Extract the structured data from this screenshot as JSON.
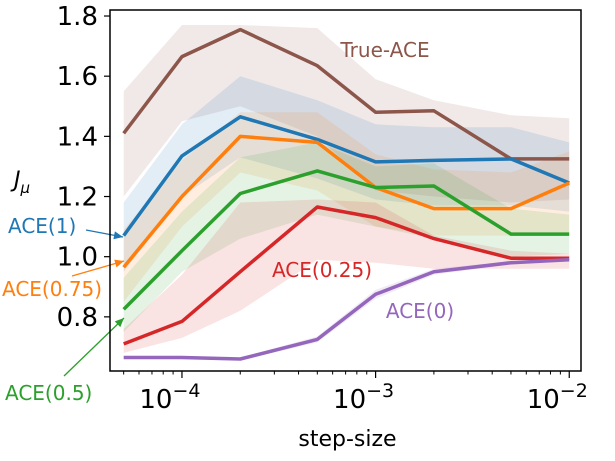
{
  "chart_data": {
    "type": "line",
    "title": "",
    "xlabel": "step-size",
    "ylabel": "J",
    "ylabel_sub": "μ",
    "x_scale": "log",
    "x": [
      5e-05,
      0.0001,
      0.0002,
      0.0005,
      0.001,
      0.002,
      0.005,
      0.01
    ],
    "xlim": [
      4.25e-05,
      0.0115
    ],
    "ylim": [
      0.62,
      1.82
    ],
    "x_ticks": [
      {
        "value": 0.0001,
        "base": "10",
        "exp": "−4"
      },
      {
        "value": 0.001,
        "base": "10",
        "exp": "−3"
      },
      {
        "value": 0.01,
        "base": "10",
        "exp": "−2"
      }
    ],
    "y_ticks": [
      {
        "value": 0.8,
        "label": "0.8"
      },
      {
        "value": 1.0,
        "label": "1.0"
      },
      {
        "value": 1.2,
        "label": "1.2"
      },
      {
        "value": 1.4,
        "label": "1.4"
      },
      {
        "value": 1.6,
        "label": "1.6"
      },
      {
        "value": 1.8,
        "label": "1.8"
      }
    ],
    "series": [
      {
        "name": "True-ACE",
        "color": "#8c564b",
        "values": [
          1.41,
          1.665,
          1.755,
          1.635,
          1.48,
          1.485,
          1.325,
          1.325
        ],
        "lower": [
          1.2,
          1.45,
          1.5,
          1.4,
          1.22,
          1.2,
          1.18,
          1.19
        ],
        "upper": [
          1.55,
          1.77,
          1.77,
          1.76,
          1.59,
          1.52,
          1.47,
          1.46
        ]
      },
      {
        "name": "ACE(1)",
        "color": "#1f77b4",
        "values": [
          1.07,
          1.335,
          1.465,
          1.39,
          1.315,
          1.32,
          1.325,
          1.245
        ],
        "lower": [
          0.95,
          1.2,
          1.33,
          1.26,
          1.19,
          1.17,
          1.17,
          1.15
        ],
        "upper": [
          1.18,
          1.44,
          1.6,
          1.52,
          1.44,
          1.43,
          1.43,
          1.38
        ]
      },
      {
        "name": "ACE(0.75)",
        "color": "#ff7f0e",
        "values": [
          0.965,
          1.2,
          1.4,
          1.38,
          1.23,
          1.16,
          1.16,
          1.245
        ],
        "lower": [
          0.85,
          1.1,
          1.28,
          1.22,
          1.1,
          1.07,
          1.07,
          1.07
        ],
        "upper": [
          1.09,
          1.32,
          1.48,
          1.48,
          1.34,
          1.29,
          1.28,
          1.35
        ]
      },
      {
        "name": "ACE(0.5)",
        "color": "#2ca02c",
        "values": [
          0.825,
          1.02,
          1.21,
          1.285,
          1.23,
          1.235,
          1.075,
          1.075
        ],
        "lower": [
          0.75,
          0.95,
          1.06,
          1.14,
          1.1,
          1.06,
          1.0,
          1.01
        ],
        "upper": [
          0.93,
          1.15,
          1.33,
          1.38,
          1.3,
          1.31,
          1.16,
          1.14
        ]
      },
      {
        "name": "ACE(0.25)",
        "color": "#d62728",
        "values": [
          0.71,
          0.785,
          0.95,
          1.165,
          1.13,
          1.06,
          0.995,
          0.995
        ],
        "lower": [
          0.68,
          0.73,
          0.82,
          0.99,
          0.98,
          0.96,
          0.96,
          0.96
        ],
        "upper": [
          0.76,
          0.94,
          1.18,
          1.19,
          1.18,
          1.07,
          1.02,
          1.01
        ]
      },
      {
        "name": "ACE(0)",
        "color": "#9467bd",
        "values": [
          0.665,
          0.665,
          0.66,
          0.725,
          0.875,
          0.95,
          0.98,
          0.99
        ],
        "lower": [
          0.66,
          0.66,
          0.655,
          0.715,
          0.86,
          0.94,
          0.975,
          0.985
        ],
        "upper": [
          0.67,
          0.67,
          0.665,
          0.735,
          0.89,
          0.96,
          0.985,
          0.995
        ]
      }
    ],
    "annotations": [
      {
        "text": "True-ACE",
        "color": "#8c564b",
        "placement": "inside",
        "arrow": false
      },
      {
        "text": "ACE(1)",
        "color": "#1f77b4",
        "placement": "outside-left",
        "arrow": true,
        "series": "ACE(1)"
      },
      {
        "text": "ACE(0.75)",
        "color": "#ff7f0e",
        "placement": "outside-left",
        "arrow": true,
        "series": "ACE(0.75)"
      },
      {
        "text": "ACE(0.5)",
        "color": "#2ca02c",
        "placement": "outside-left",
        "arrow": true,
        "series": "ACE(0.5)"
      },
      {
        "text": "ACE(0.25)",
        "color": "#d62728",
        "placement": "inside",
        "arrow": false
      },
      {
        "text": "ACE(0)",
        "color": "#9467bd",
        "placement": "inside",
        "arrow": false
      }
    ]
  }
}
